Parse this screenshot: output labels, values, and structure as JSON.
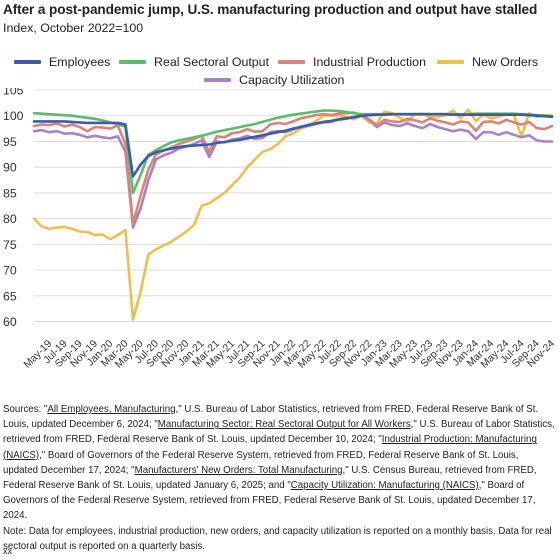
{
  "header": {
    "title": "After a post-pandemic jump, U.S. manufacturing production and output have stalled",
    "subtitle": "Index, October 2022=100"
  },
  "legend": [
    {
      "name": "Employees",
      "color": "#3d5ba8"
    },
    {
      "name": "Real Sectoral Output",
      "color": "#5cbc6c"
    },
    {
      "name": "Industrial Production",
      "color": "#d9837a"
    },
    {
      "name": "New Orders",
      "color": "#ecc04e"
    },
    {
      "name": "Capacity Utilization",
      "color": "#a782c4"
    }
  ],
  "chart_data": {
    "type": "line",
    "title": "After a post-pandemic jump, U.S. manufacturing production and output have stalled",
    "ylabel": "Index, October 2022=100",
    "ylim": [
      57,
      105
    ],
    "yticks": [
      60,
      65,
      70,
      75,
      80,
      85,
      90,
      95,
      100,
      105
    ],
    "grid": "horizontal",
    "legend_position": "top",
    "x": [
      "Mar-19",
      "Apr-19",
      "May-19",
      "Jun-19",
      "Jul-19",
      "Aug-19",
      "Sep-19",
      "Oct-19",
      "Nov-19",
      "Dec-19",
      "Jan-20",
      "Feb-20",
      "Mar-20",
      "Apr-20",
      "May-20",
      "Jun-20",
      "Jul-20",
      "Aug-20",
      "Sep-20",
      "Oct-20",
      "Nov-20",
      "Dec-20",
      "Jan-21",
      "Feb-21",
      "Mar-21",
      "Apr-21",
      "May-21",
      "Jun-21",
      "Jul-21",
      "Aug-21",
      "Sep-21",
      "Oct-21",
      "Nov-21",
      "Dec-21",
      "Jan-22",
      "Feb-22",
      "Mar-22",
      "Apr-22",
      "May-22",
      "Jun-22",
      "Jul-22",
      "Aug-22",
      "Sep-22",
      "Oct-22",
      "Nov-22",
      "Dec-22",
      "Jan-23",
      "Feb-23",
      "Mar-23",
      "Apr-23",
      "May-23",
      "Jun-23",
      "Jul-23",
      "Aug-23",
      "Sep-23",
      "Oct-23",
      "Nov-23",
      "Dec-23",
      "Jan-24",
      "Feb-24",
      "Mar-24",
      "Apr-24",
      "May-24",
      "Jun-24",
      "Jul-24",
      "Aug-24",
      "Sep-24",
      "Oct-24",
      "Nov-24"
    ],
    "xtick_labels": [
      "May-19",
      "Jul-19",
      "Sep-19",
      "Nov-19",
      "Jan-20",
      "Mar-20",
      "May-20",
      "Jul-20",
      "Sep-20",
      "Nov-20",
      "Jan-21",
      "Mar-21",
      "May-21",
      "Jul-21",
      "Sep-21",
      "Nov-21",
      "Jan-22",
      "Mar-22",
      "May-22",
      "Jul-22",
      "Sep-22",
      "Nov-22",
      "Jan-23",
      "Mar-23",
      "May-23",
      "Jul-23",
      "Sep-23",
      "Nov-23",
      "Jan-24",
      "Mar-24",
      "May-24",
      "Jul-24",
      "Sep-24",
      "Nov-24"
    ],
    "series": [
      {
        "name": "Employees",
        "color": "#3d5ba8",
        "values": [
          98.9,
          98.9,
          98.9,
          98.9,
          98.9,
          98.8,
          98.7,
          98.6,
          98.6,
          98.6,
          98.6,
          98.6,
          98.3,
          88.2,
          90.5,
          92.2,
          92.9,
          93.3,
          93.6,
          93.9,
          94.1,
          94.2,
          94.3,
          94.4,
          94.7,
          94.9,
          95.1,
          95.3,
          95.6,
          95.9,
          96.2,
          96.5,
          96.8,
          97.1,
          97.5,
          97.8,
          98.2,
          98.5,
          98.8,
          99.0,
          99.3,
          99.5,
          99.7,
          100.0,
          100.1,
          100.2,
          100.2,
          100.3,
          100.3,
          100.3,
          100.3,
          100.3,
          100.3,
          100.3,
          100.3,
          100.2,
          100.2,
          100.2,
          100.2,
          100.2,
          100.2,
          100.2,
          100.2,
          100.2,
          100.2,
          100.1,
          100.0,
          99.9,
          99.8
        ]
      },
      {
        "name": "Real Sectoral Output",
        "color": "#5cbc6c",
        "values": [
          100.5,
          100.4,
          100.3,
          100.2,
          100.1,
          100.0,
          99.8,
          99.6,
          99.4,
          99.1,
          98.7,
          98.3,
          97.9,
          85.0,
          88.5,
          92.4,
          93.3,
          94.1,
          94.8,
          95.2,
          95.5,
          95.8,
          96.1,
          96.5,
          96.9,
          97.2,
          97.5,
          97.8,
          98.1,
          98.4,
          98.8,
          99.2,
          99.6,
          99.9,
          100.2,
          100.4,
          100.6,
          100.8,
          101.0,
          101.0,
          100.9,
          100.7,
          100.5,
          100.3,
          100.3,
          100.3,
          100.3,
          100.3,
          100.3,
          100.3,
          100.3,
          100.3,
          100.3,
          100.3,
          100.3,
          100.3,
          100.3,
          100.3,
          100.4,
          100.4,
          100.4,
          100.4,
          100.4,
          100.4,
          100.3,
          100.2,
          100.1,
          100.0,
          99.9
        ]
      },
      {
        "name": "Industrial Production",
        "color": "#d9837a",
        "values": [
          98.0,
          98.3,
          98.2,
          98.5,
          97.9,
          98.3,
          97.8,
          97.0,
          97.8,
          97.7,
          97.5,
          98.1,
          94.5,
          79.0,
          84.5,
          89.5,
          92.5,
          93.2,
          93.8,
          94.5,
          95.0,
          95.5,
          96.1,
          93.0,
          96.0,
          95.8,
          96.6,
          96.8,
          97.4,
          96.9,
          97.0,
          98.3,
          98.6,
          98.4,
          98.9,
          99.5,
          99.8,
          100.1,
          100.3,
          100.1,
          100.4,
          100.5,
          100.6,
          100.0,
          99.3,
          98.1,
          99.2,
          98.9,
          98.8,
          99.4,
          99.1,
          98.7,
          99.5,
          99.0,
          98.7,
          98.3,
          98.9,
          98.7,
          97.1,
          98.8,
          98.9,
          98.5,
          99.2,
          98.7,
          98.3,
          98.8,
          97.6,
          97.4,
          98.0
        ]
      },
      {
        "name": "New Orders",
        "color": "#ecc04e",
        "values": [
          80.0,
          78.5,
          78.0,
          78.3,
          78.4,
          78.0,
          77.5,
          77.4,
          76.8,
          76.9,
          76.0,
          76.8,
          77.8,
          60.4,
          65.8,
          73.0,
          74.0,
          74.8,
          75.5,
          76.5,
          77.5,
          78.8,
          82.5,
          83.0,
          84.0,
          85.0,
          86.5,
          88.0,
          90.0,
          91.5,
          93.0,
          93.5,
          94.5,
          96.0,
          96.5,
          97.5,
          98.0,
          99.0,
          100.0,
          100.1,
          100.0,
          99.8,
          99.3,
          100.0,
          98.7,
          98.5,
          100.8,
          100.5,
          99.6,
          98.8,
          100.3,
          100.4,
          99.7,
          99.8,
          100.1,
          101.0,
          99.5,
          101.2,
          99.0,
          100.2,
          99.5,
          99.8,
          100.4,
          100.1,
          96.0,
          100.5,
          99.8,
          100.1,
          100.0
        ]
      },
      {
        "name": "Capacity Utilization",
        "color": "#a782c4",
        "values": [
          97.0,
          97.2,
          96.8,
          97.0,
          96.5,
          96.6,
          96.3,
          95.8,
          96.1,
          95.8,
          95.6,
          96.0,
          93.0,
          78.3,
          82.0,
          87.5,
          91.5,
          92.3,
          92.8,
          93.6,
          94.0,
          94.5,
          95.2,
          92.0,
          95.0,
          94.8,
          95.4,
          95.6,
          96.1,
          95.5,
          95.7,
          96.8,
          97.0,
          96.8,
          97.3,
          97.9,
          98.0,
          98.4,
          98.7,
          98.8,
          99.2,
          99.4,
          99.8,
          100.0,
          99.2,
          97.8,
          98.7,
          98.2,
          98.0,
          98.5,
          98.0,
          97.6,
          98.4,
          97.8,
          97.4,
          97.0,
          97.3,
          97.0,
          95.5,
          96.8,
          96.8,
          96.3,
          96.8,
          96.3,
          95.8,
          96.2,
          95.2,
          95.0,
          95.0
        ]
      }
    ]
  },
  "sources": {
    "p1": "Sources: \"",
    "l1": "All Employees, Manufacturing",
    "p2": ",\" U.S. Bureau of Labor Statistics, retrieved from FRED, Federal Reserve Bank of St. Louis, updated December 6, 2024; \"",
    "l2": "Manufacturing Sector: Real Sectoral Output for All Workers",
    "p3": ",\" U.S. Bureau of Labor Statistics, retrieved from FRED, Federal Reserve Bank of St. Louis, updated December 10, 2024; \"",
    "l3": "Industrial Production: Manufacturing (NAICS)",
    "p4": ",\" Board of Governors of the Federal Reserve System, retrieved from FRED, Federal Reserve Bank of St. Louis, updated December 17, 2024; \"",
    "l4": "Manufacturers' New Orders: Total Manufacturing",
    "p5": ",\" U.S. Census Bureau, retrieved from FRED, Federal Reserve Bank of St. Louis, updated January 6, 2025; and \"",
    "l5": "Capacity Utilization: Manufacturing (NAICS)",
    "p6": ",\" Board of Governors of the Federal Reserve System, retrieved from FRED, Federal Reserve Bank of St. Louis, updated December 17, 2024.",
    "note": "Note: Data for employees, industrial production, new orders, and capacity utilization is reported on a monthly basis. Data for real sectoral output is reported on a quarterly basis.",
    "footer_mark": "xx"
  }
}
